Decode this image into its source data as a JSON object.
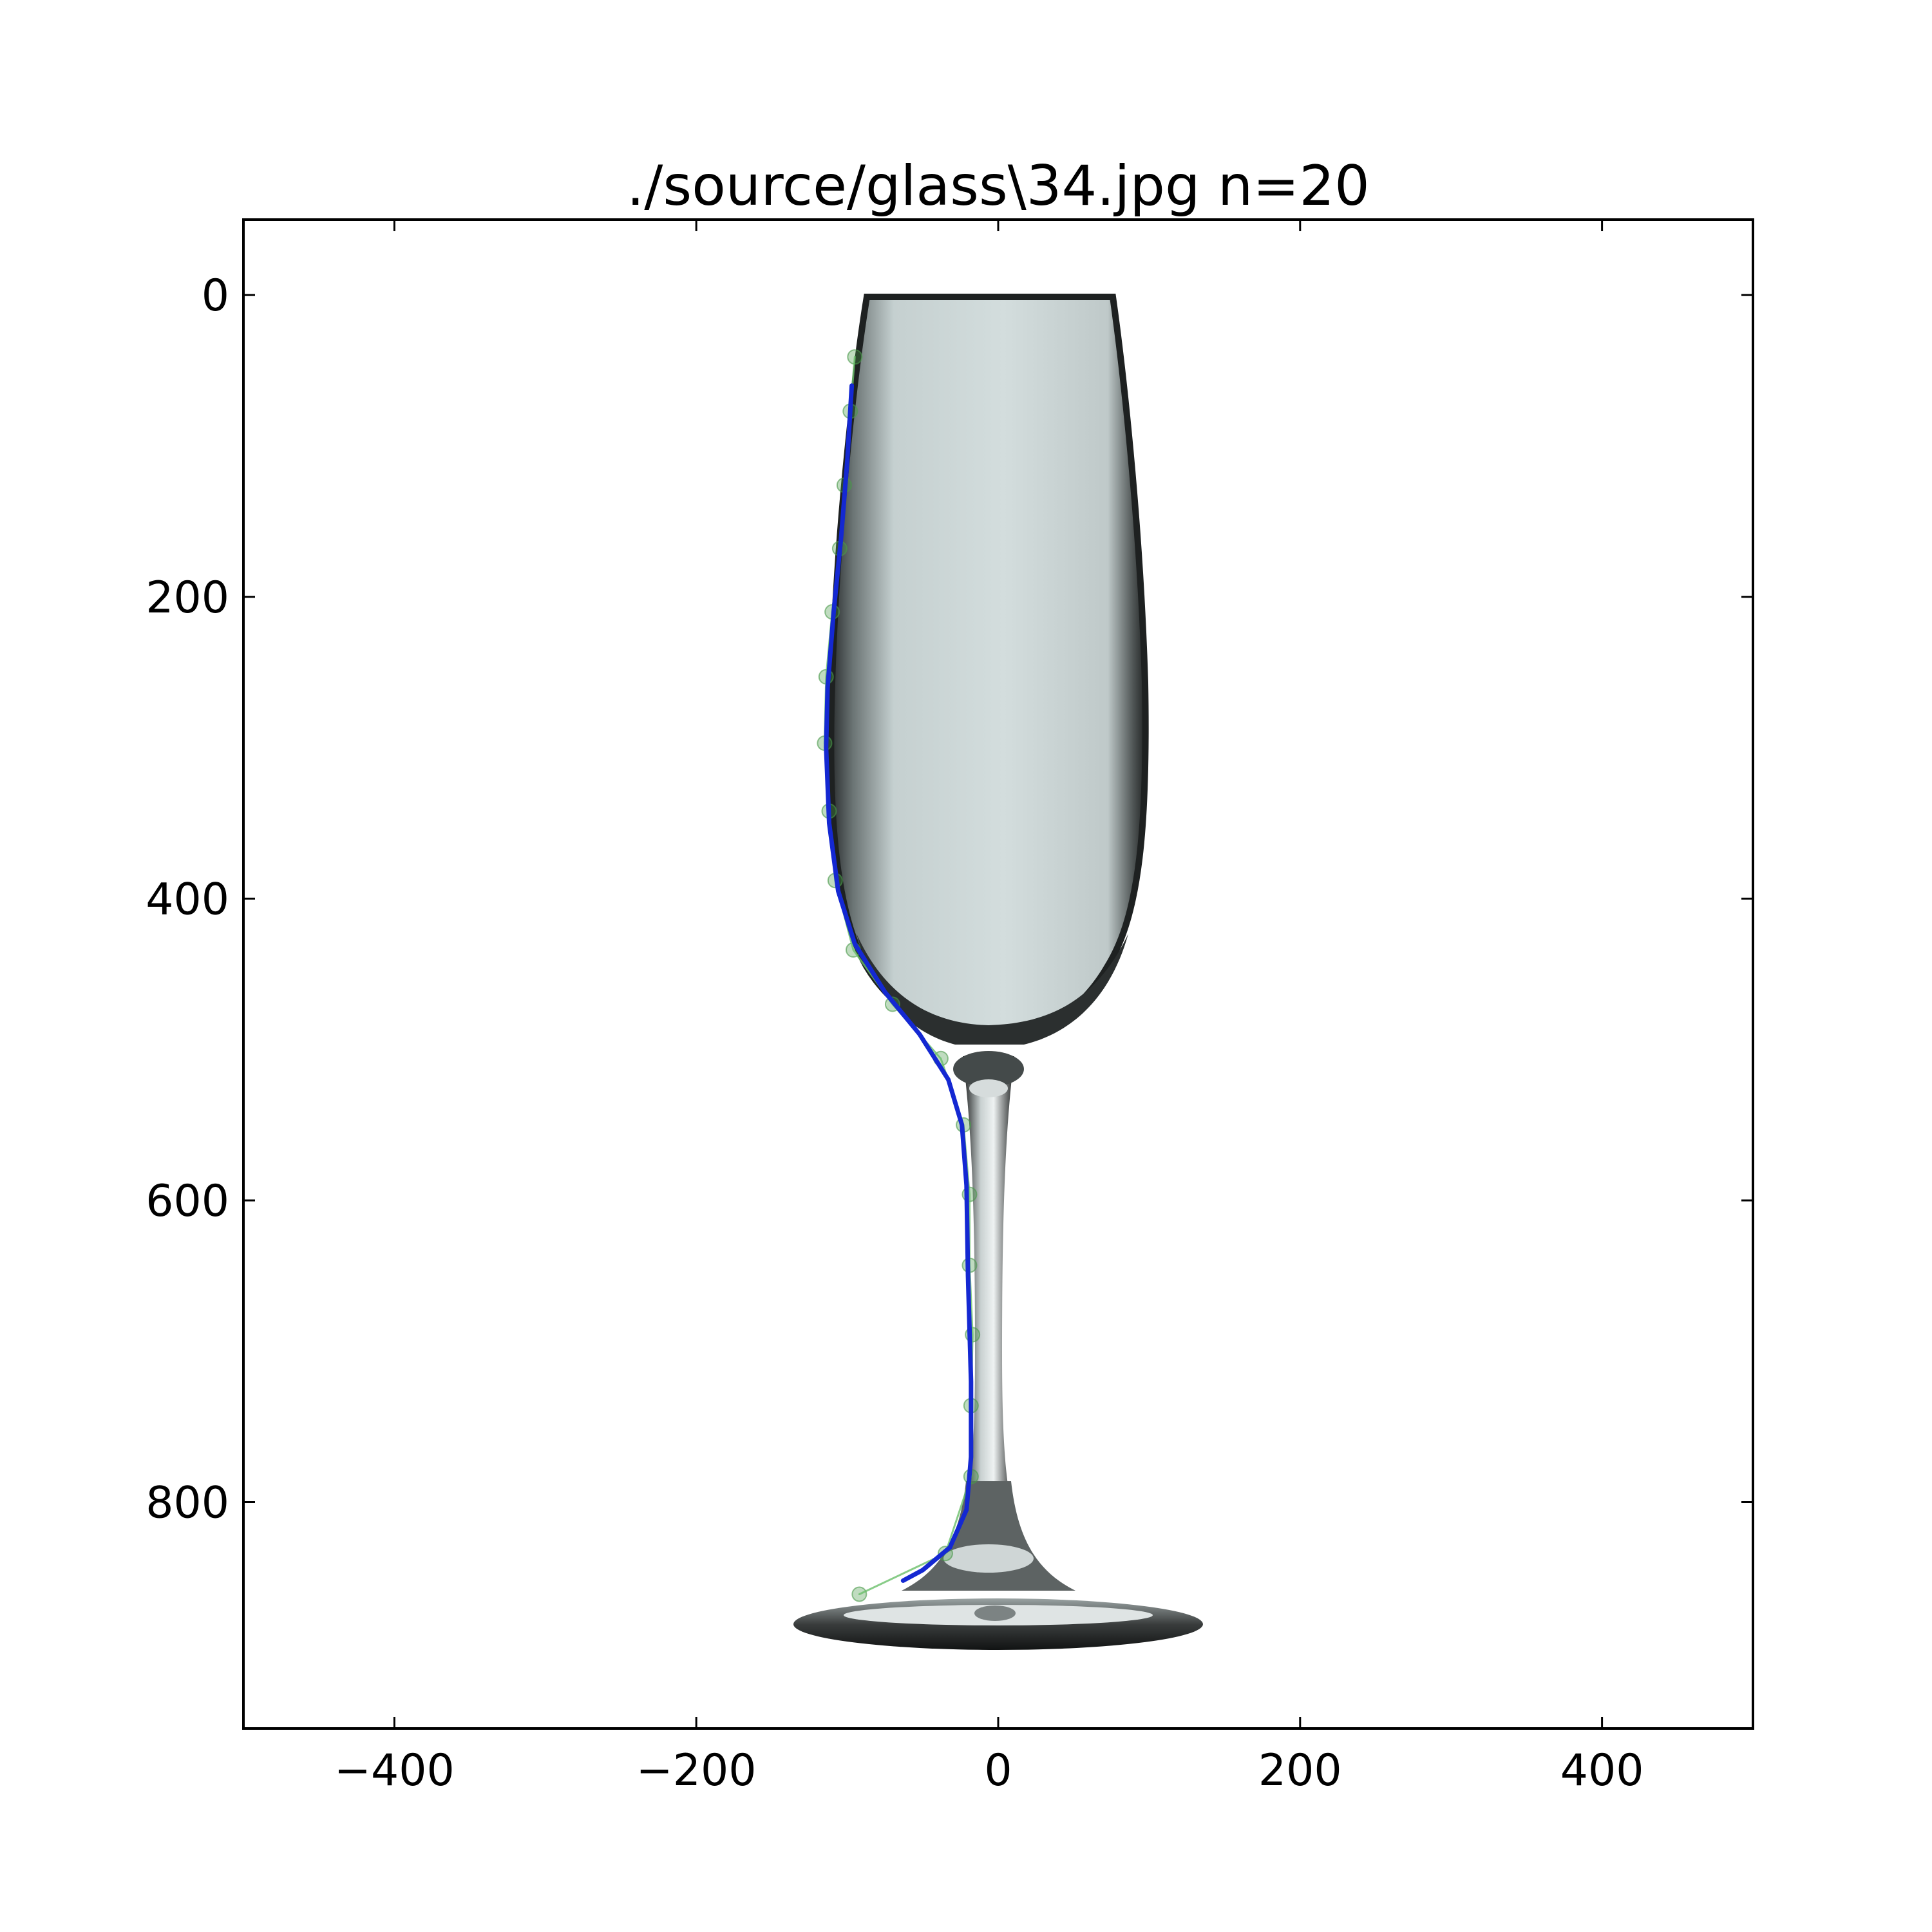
{
  "chart_data": {
    "type": "scatter",
    "title": "./source/glass\\34.jpg n=20",
    "xlabel": "",
    "ylabel": "",
    "xlim": [
      -500,
      500
    ],
    "ylim": [
      950,
      -50
    ],
    "y_inverted": true,
    "grid": false,
    "x_ticks": [
      -400,
      -200,
      0,
      200,
      400
    ],
    "x_tick_labels": [
      "−400",
      "−200",
      "0",
      "200",
      "400"
    ],
    "y_ticks": [
      0,
      200,
      400,
      600,
      800
    ],
    "y_tick_labels": [
      "0",
      "200",
      "400",
      "600",
      "800"
    ],
    "background_image": "champagne-flute-photo",
    "series": [
      {
        "kind": "markers",
        "color": "#4a9a4a",
        "points": [
          {
            "x": -95,
            "y": 41
          },
          {
            "x": -98,
            "y": 77
          },
          {
            "x": -102,
            "y": 126
          },
          {
            "x": -105,
            "y": 168
          },
          {
            "x": -110,
            "y": 210
          },
          {
            "x": -114,
            "y": 253
          },
          {
            "x": -115,
            "y": 297
          },
          {
            "x": -112,
            "y": 342
          },
          {
            "x": -108,
            "y": 388
          },
          {
            "x": -96,
            "y": 434
          },
          {
            "x": -70,
            "y": 470
          },
          {
            "x": -38,
            "y": 506
          },
          {
            "x": -23,
            "y": 550
          },
          {
            "x": -19,
            "y": 596
          },
          {
            "x": -19,
            "y": 643
          },
          {
            "x": -17,
            "y": 689
          },
          {
            "x": -18,
            "y": 736
          },
          {
            "x": -18,
            "y": 783
          },
          {
            "x": -35,
            "y": 834
          },
          {
            "x": -92,
            "y": 861
          }
        ]
      },
      {
        "kind": "thin-line",
        "color": "#6abf6a",
        "points": [
          {
            "x": -95,
            "y": 41
          },
          {
            "x": -98,
            "y": 77
          },
          {
            "x": -102,
            "y": 126
          },
          {
            "x": -105,
            "y": 168
          },
          {
            "x": -110,
            "y": 210
          },
          {
            "x": -114,
            "y": 253
          },
          {
            "x": -115,
            "y": 297
          },
          {
            "x": -112,
            "y": 342
          },
          {
            "x": -108,
            "y": 388
          },
          {
            "x": -96,
            "y": 434
          },
          {
            "x": -70,
            "y": 470
          },
          {
            "x": -38,
            "y": 506
          },
          {
            "x": -23,
            "y": 550
          },
          {
            "x": -19,
            "y": 596
          },
          {
            "x": -19,
            "y": 643
          },
          {
            "x": -17,
            "y": 689
          },
          {
            "x": -18,
            "y": 736
          },
          {
            "x": -18,
            "y": 783
          },
          {
            "x": -35,
            "y": 834
          },
          {
            "x": -92,
            "y": 861
          }
        ]
      },
      {
        "kind": "fit-curve",
        "color": "#1428d2",
        "points": [
          {
            "x": -97,
            "y": 60
          },
          {
            "x": -100,
            "y": 110
          },
          {
            "x": -104,
            "y": 160
          },
          {
            "x": -109,
            "y": 210
          },
          {
            "x": -113,
            "y": 260
          },
          {
            "x": -114,
            "y": 300
          },
          {
            "x": -112,
            "y": 350
          },
          {
            "x": -106,
            "y": 395
          },
          {
            "x": -95,
            "y": 430
          },
          {
            "x": -75,
            "y": 462
          },
          {
            "x": -52,
            "y": 490
          },
          {
            "x": -33,
            "y": 520
          },
          {
            "x": -24,
            "y": 550
          },
          {
            "x": -21,
            "y": 590
          },
          {
            "x": -20,
            "y": 650
          },
          {
            "x": -18,
            "y": 720
          },
          {
            "x": -18,
            "y": 770
          },
          {
            "x": -21,
            "y": 805
          },
          {
            "x": -32,
            "y": 830
          },
          {
            "x": -50,
            "y": 845
          },
          {
            "x": -63,
            "y": 852
          }
        ]
      }
    ]
  }
}
